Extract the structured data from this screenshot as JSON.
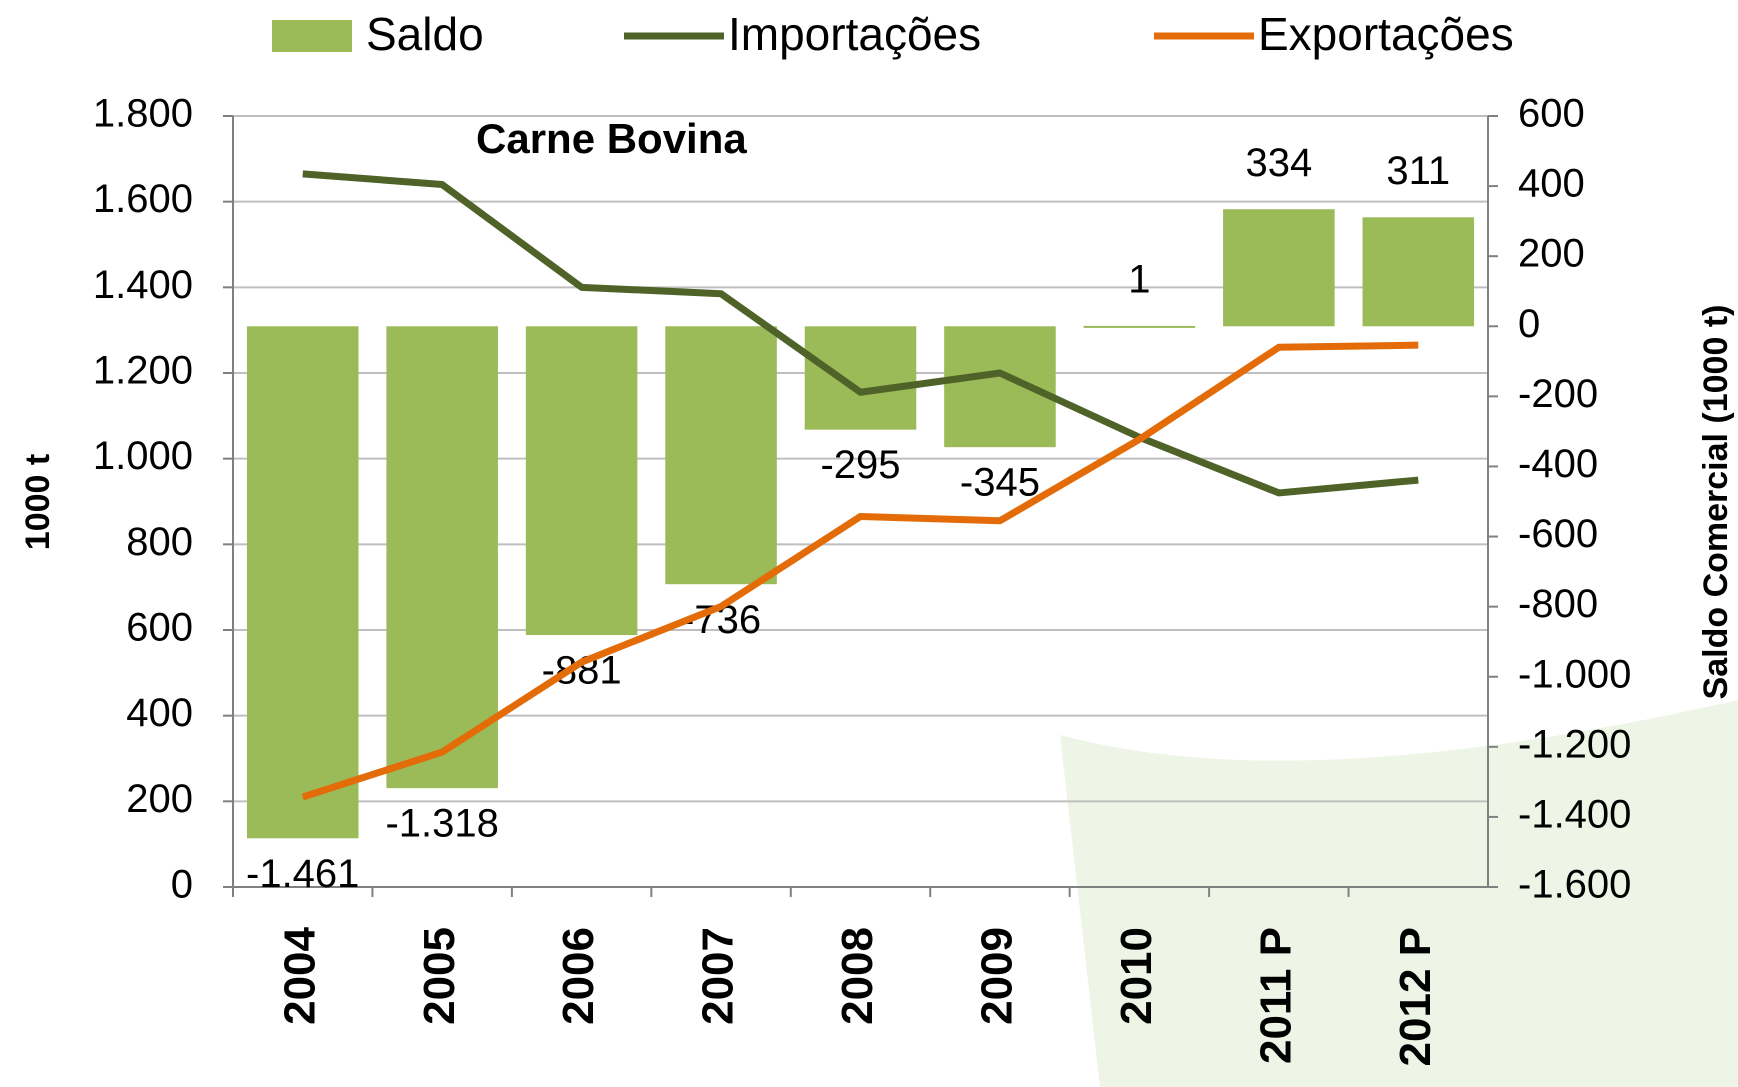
{
  "chart_data": {
    "type": "bar",
    "title": "Carne Bovina",
    "y_label": "1000 t",
    "y2_label": "Saldo Comercial (1000 t)",
    "categories": [
      "2004",
      "2005",
      "2006",
      "2007",
      "2008",
      "2009",
      "2010",
      "2011 P",
      "2012 P"
    ],
    "series": [
      {
        "name": "Saldo",
        "type": "bar",
        "axis": "y2",
        "color": "#9bbb59",
        "values": [
          -1461,
          -1318,
          -881,
          -736,
          -295,
          -345,
          1,
          334,
          311
        ],
        "value_labels": [
          "-1.461",
          "-1.318",
          "-881",
          "-736",
          "-295",
          "-345",
          "1",
          "334",
          "311"
        ]
      },
      {
        "name": "Importações",
        "type": "line",
        "color": "#4f6228",
        "values": [
          1665,
          1640,
          1400,
          1385,
          1155,
          1200,
          1050,
          920,
          950
        ]
      },
      {
        "name": "Exportações",
        "type": "line",
        "color": "#e36c09",
        "values": [
          210,
          315,
          525,
          655,
          865,
          855,
          1045,
          1260,
          1265
        ]
      }
    ],
    "ylim": [
      0,
      1800
    ],
    "yticks": [
      0,
      200,
      400,
      600,
      800,
      {
        "value": 1000,
        "label": "1.000"
      },
      {
        "value": 1200,
        "label": "1.200"
      },
      {
        "value": 1400,
        "label": "1.400"
      },
      {
        "value": 1600,
        "label": "1.600"
      },
      {
        "value": 1800,
        "label": "1.800"
      }
    ],
    "y2lim": [
      -1600,
      600
    ],
    "y2ticks": [
      {
        "value": -1600,
        "label": "-1.600"
      },
      {
        "value": -1400,
        "label": "-1.400"
      },
      {
        "value": -1200,
        "label": "-1.200"
      },
      {
        "value": -1000,
        "label": "-1.000"
      },
      -800,
      -600,
      -400,
      -200,
      0,
      200,
      400,
      600
    ],
    "grid": true,
    "legend": "top"
  }
}
